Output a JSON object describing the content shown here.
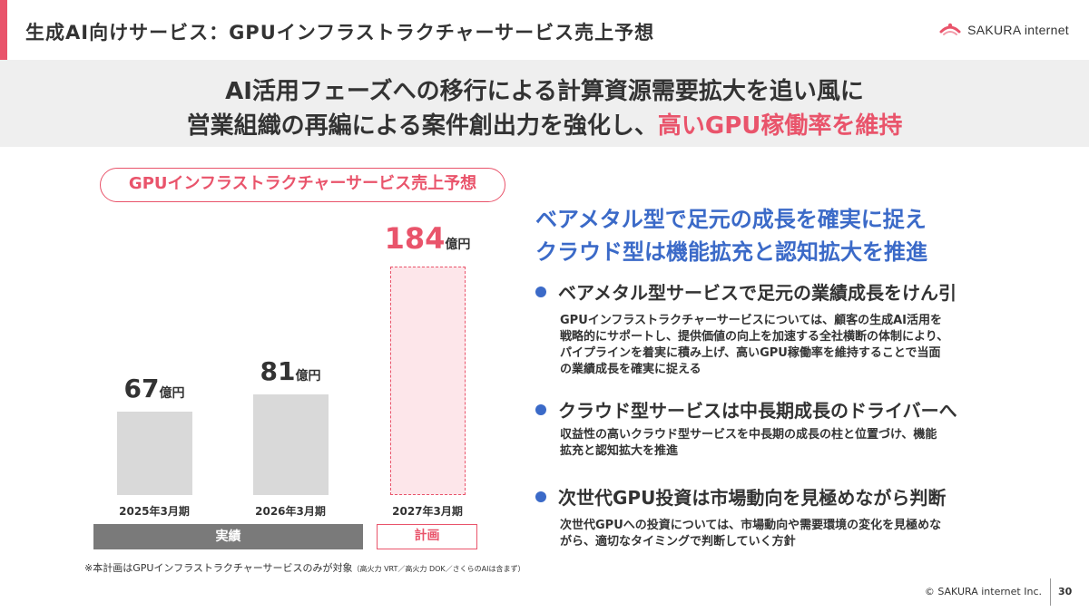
{
  "header": {
    "title": "生成AI向けサービス：GPUインフラストラクチャーサービス売上予想",
    "logo_text": "SAKURA internet",
    "accent_color": "#e9546b"
  },
  "banner": {
    "line1": "AI活用フェーズへの移行による計算資源需要拡大を追い風に",
    "line2_prefix": "営業組織の再編による案件創出力を強化し、",
    "line2_highlight": "高いGPU稼働率を維持"
  },
  "chart_data": {
    "type": "bar",
    "title": "GPUインフラストラクチャーサービス売上予想",
    "categories": [
      "2025年3月期",
      "2026年3月期",
      "2027年3月期"
    ],
    "values": [
      67,
      81,
      184
    ],
    "value_unit": "億円",
    "phases": [
      {
        "label": "実績",
        "categories": [
          "2025年3月期",
          "2026年3月期"
        ]
      },
      {
        "label": "計画",
        "categories": [
          "2027年3月期"
        ]
      }
    ],
    "footnote_main": "※本計画はGPUインフラストラクチャーサービスのみが対象",
    "footnote_small": "（高火力 VRT／高火力 DOK／さくらのAIは含まず）"
  },
  "right": {
    "headline1": "ベアメタル型で足元の成長を確実に捉え",
    "headline2": "クラウド型は機能拡充と認知拡大を推進",
    "bullets": [
      {
        "title": "ベアメタル型サービスで足元の業績成長をけん引",
        "lines": [
          "GPUインフラストラクチャーサービスについては、顧客の生成AI活用を",
          "戦略的にサポートし、提供価値の向上を加速する全社横断の体制により、",
          "パイプラインを着実に積み上げ、高いGPU稼働率を維持することで当面",
          "の業績成長を確実に捉える"
        ]
      },
      {
        "title": "クラウド型サービスは中長期成長のドライバーへ",
        "lines": [
          "収益性の高いクラウド型サービスを中長期の成長の柱と位置づけ、機能",
          "拡充と認知拡大を推進"
        ]
      },
      {
        "title": "次世代GPU投資は市場動向を見極めながら判断",
        "lines": [
          "次世代GPUへの投資については、市場動向や需要環境の変化を見極めな",
          "がら、適切なタイミングで判断していく方針"
        ]
      }
    ]
  },
  "footer": {
    "copyright": "© SAKURA internet Inc.",
    "page_number": "30"
  }
}
